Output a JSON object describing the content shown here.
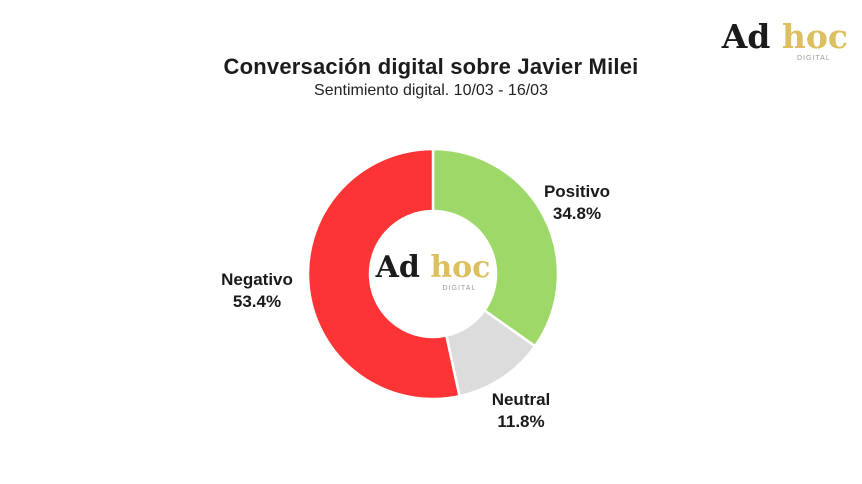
{
  "header": {
    "title": "Conversación digital sobre Javier Milei",
    "subtitle": "Sentimiento digital. 10/03 - 16/03"
  },
  "logo": {
    "part1": "Ad",
    "part2": "hoc",
    "tagline": "DIGITAL",
    "dark_color": "#1b1b1b",
    "gold_color": "#dcbf5e",
    "tagline_color": "#9a9a9a"
  },
  "chart_data": {
    "type": "pie",
    "variant": "donut",
    "title": "Conversación digital sobre Javier Milei",
    "subtitle": "Sentimiento digital. 10/03 - 16/03",
    "start_angle_deg": 0,
    "direction": "clockwise",
    "inner_radius_ratio": 0.5,
    "separator_color": "#ffffff",
    "legend_position": "outside-labels",
    "segments": [
      {
        "label": "Positivo",
        "value": 34.8,
        "display": "34.8%",
        "color": "#9ed869"
      },
      {
        "label": "Neutral",
        "value": 11.8,
        "display": "11.8%",
        "color": "#dcdcdc"
      },
      {
        "label": "Negativo",
        "value": 53.4,
        "display": "53.4%",
        "color": "#fc3435"
      }
    ]
  }
}
